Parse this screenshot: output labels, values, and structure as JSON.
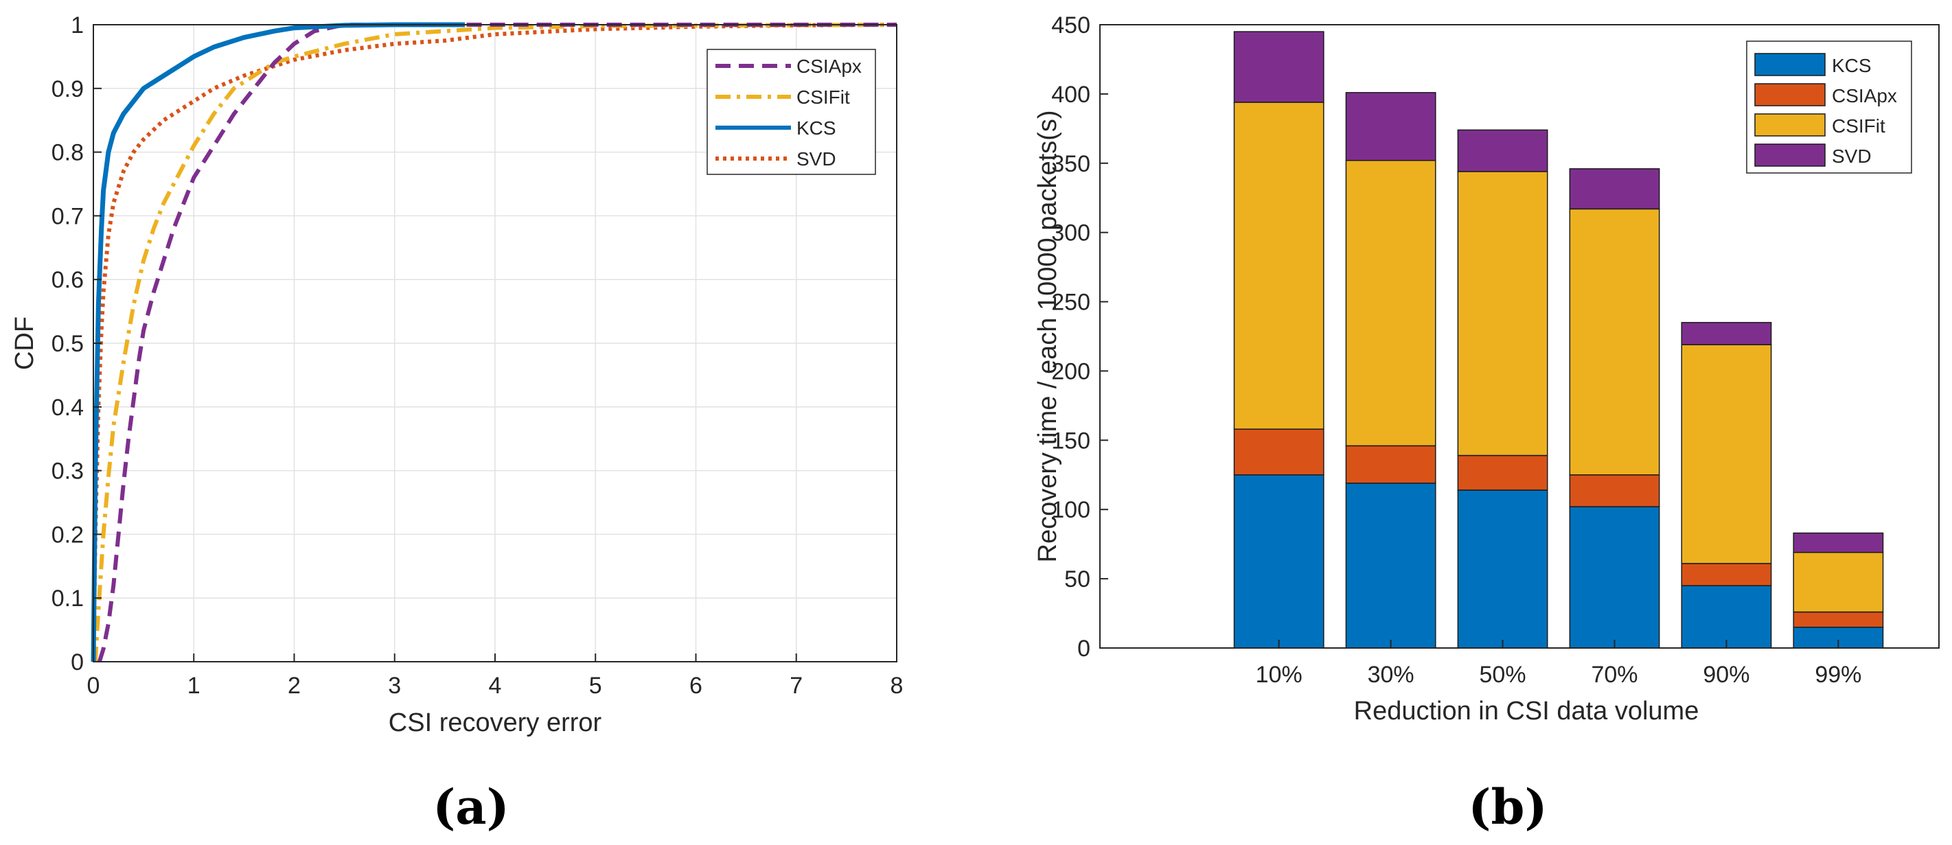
{
  "panel_labels": {
    "a": "(a)",
    "b": "(b)"
  },
  "chart_data": [
    {
      "type": "line",
      "panel": "(a)",
      "title": "",
      "xlabel": "CSI recovery error",
      "ylabel": "CDF",
      "xlim": [
        0,
        8
      ],
      "ylim": [
        0,
        1
      ],
      "xticks": [
        "0",
        "1",
        "2",
        "3",
        "4",
        "5",
        "6",
        "7",
        "8"
      ],
      "yticks": [
        "0",
        "0.1",
        "0.2",
        "0.3",
        "0.4",
        "0.5",
        "0.6",
        "0.7",
        "0.8",
        "0.9",
        "1"
      ],
      "grid": true,
      "legend_position": "top-right",
      "series": [
        {
          "name": "CSIApx",
          "color": "#7E2F8E",
          "style": "dashed",
          "points": [
            [
              0.06,
              0
            ],
            [
              0.1,
              0.02
            ],
            [
              0.15,
              0.06
            ],
            [
              0.2,
              0.12
            ],
            [
              0.25,
              0.2
            ],
            [
              0.3,
              0.28
            ],
            [
              0.35,
              0.35
            ],
            [
              0.4,
              0.41
            ],
            [
              0.45,
              0.47
            ],
            [
              0.5,
              0.52
            ],
            [
              0.6,
              0.58
            ],
            [
              0.7,
              0.63
            ],
            [
              0.8,
              0.68
            ],
            [
              0.9,
              0.72
            ],
            [
              1.0,
              0.76
            ],
            [
              1.2,
              0.81
            ],
            [
              1.4,
              0.86
            ],
            [
              1.6,
              0.9
            ],
            [
              1.8,
              0.94
            ],
            [
              2.0,
              0.97
            ],
            [
              2.2,
              0.99
            ],
            [
              2.5,
              1.0
            ],
            [
              8,
              1.0
            ]
          ]
        },
        {
          "name": "CSIFit",
          "color": "#EDB120",
          "style": "dashdot",
          "points": [
            [
              0.02,
              0
            ],
            [
              0.05,
              0.08
            ],
            [
              0.1,
              0.2
            ],
            [
              0.15,
              0.29
            ],
            [
              0.2,
              0.37
            ],
            [
              0.3,
              0.47
            ],
            [
              0.4,
              0.56
            ],
            [
              0.5,
              0.63
            ],
            [
              0.6,
              0.68
            ],
            [
              0.7,
              0.72
            ],
            [
              0.8,
              0.75
            ],
            [
              0.9,
              0.78
            ],
            [
              1.0,
              0.81
            ],
            [
              1.2,
              0.86
            ],
            [
              1.4,
              0.9
            ],
            [
              1.6,
              0.92
            ],
            [
              1.8,
              0.94
            ],
            [
              2.0,
              0.95
            ],
            [
              2.5,
              0.97
            ],
            [
              3.0,
              0.985
            ],
            [
              3.5,
              0.99
            ],
            [
              4.0,
              0.995
            ],
            [
              5.0,
              0.998
            ],
            [
              8,
              1.0
            ]
          ]
        },
        {
          "name": "KCS",
          "color": "#0072BD",
          "style": "solid",
          "points": [
            [
              0.0,
              0
            ],
            [
              0.02,
              0.3
            ],
            [
              0.05,
              0.56
            ],
            [
              0.08,
              0.68
            ],
            [
              0.1,
              0.74
            ],
            [
              0.15,
              0.8
            ],
            [
              0.2,
              0.83
            ],
            [
              0.3,
              0.86
            ],
            [
              0.4,
              0.88
            ],
            [
              0.5,
              0.9
            ],
            [
              0.6,
              0.91
            ],
            [
              0.8,
              0.93
            ],
            [
              1.0,
              0.95
            ],
            [
              1.2,
              0.965
            ],
            [
              1.5,
              0.98
            ],
            [
              1.8,
              0.99
            ],
            [
              2.0,
              0.995
            ],
            [
              2.5,
              0.999
            ],
            [
              3.0,
              1.0
            ],
            [
              3.7,
              1.0
            ]
          ]
        },
        {
          "name": "SVD",
          "color": "#D95319",
          "style": "dotted",
          "points": [
            [
              0.0,
              0
            ],
            [
              0.02,
              0.2
            ],
            [
              0.05,
              0.4
            ],
            [
              0.08,
              0.52
            ],
            [
              0.1,
              0.58
            ],
            [
              0.15,
              0.67
            ],
            [
              0.2,
              0.72
            ],
            [
              0.3,
              0.77
            ],
            [
              0.4,
              0.8
            ],
            [
              0.5,
              0.82
            ],
            [
              0.7,
              0.85
            ],
            [
              0.9,
              0.87
            ],
            [
              1.0,
              0.88
            ],
            [
              1.2,
              0.9
            ],
            [
              1.5,
              0.92
            ],
            [
              1.8,
              0.935
            ],
            [
              2.0,
              0.945
            ],
            [
              2.5,
              0.96
            ],
            [
              3.0,
              0.97
            ],
            [
              3.5,
              0.975
            ],
            [
              4.0,
              0.985
            ],
            [
              5.0,
              0.993
            ],
            [
              6.0,
              0.997
            ],
            [
              7.0,
              0.999
            ],
            [
              8,
              1.0
            ]
          ]
        }
      ]
    },
    {
      "type": "bar",
      "stacked": true,
      "panel": "(b)",
      "title": "",
      "xlabel": "Reduction in CSI data volume",
      "ylabel": "Recovery time / each 10000 packets(s)",
      "categories": [
        "10%",
        "30%",
        "50%",
        "70%",
        "90%",
        "99%"
      ],
      "ylim": [
        0,
        450
      ],
      "yticks": [
        "0",
        "50",
        "100",
        "150",
        "200",
        "250",
        "300",
        "350",
        "400",
        "450"
      ],
      "grid": false,
      "legend_position": "top-right",
      "series": [
        {
          "name": "KCS",
          "color": "#0072BD",
          "values": [
            125,
            119,
            114,
            102,
            45,
            15
          ]
        },
        {
          "name": "CSIApx",
          "color": "#D95319",
          "values": [
            33,
            27,
            25,
            23,
            16,
            11
          ]
        },
        {
          "name": "CSIFit",
          "color": "#EDB120",
          "values": [
            236,
            206,
            205,
            192,
            158,
            43
          ]
        },
        {
          "name": "SVD",
          "color": "#7E2F8E",
          "values": [
            51,
            49,
            30,
            29,
            16,
            14
          ]
        }
      ]
    }
  ]
}
